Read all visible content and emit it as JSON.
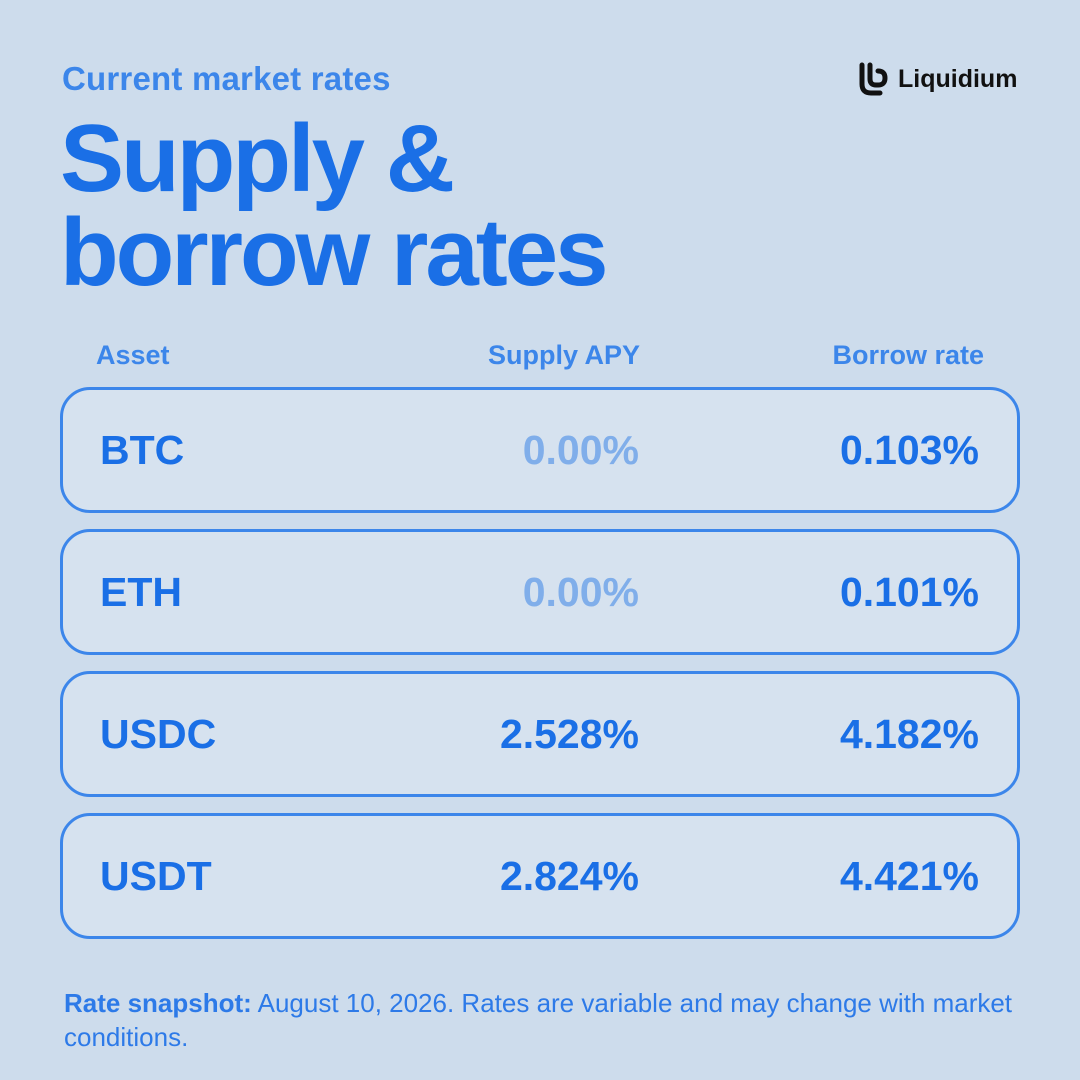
{
  "header": {
    "eyebrow": "Current market rates",
    "title_line1": "Supply &",
    "title_line2": "borrow rates"
  },
  "brand": {
    "name": "Liquidium",
    "logo_icon": "liquidium-logo-icon"
  },
  "table": {
    "columns": [
      "Asset",
      "Supply APY",
      "Borrow rate"
    ],
    "rows": [
      {
        "asset": "BTC",
        "supply": "0.00%",
        "borrow": "0.103%"
      },
      {
        "asset": "ETH",
        "supply": "0.00%",
        "borrow": "0.101%"
      },
      {
        "asset": "USDC",
        "supply": "2.528%",
        "borrow": "4.182%"
      },
      {
        "asset": "USDT",
        "supply": "2.824%",
        "borrow": "4.421%"
      }
    ]
  },
  "footnote": {
    "label": "Rate snapshot:",
    "text": " August 10, 2026. Rates are variable and may change with market conditions."
  },
  "colors": {
    "background": "#cddcec",
    "accent": "#1a6fe6",
    "muted_value": "#80aeea",
    "border": "#3c86ea"
  }
}
